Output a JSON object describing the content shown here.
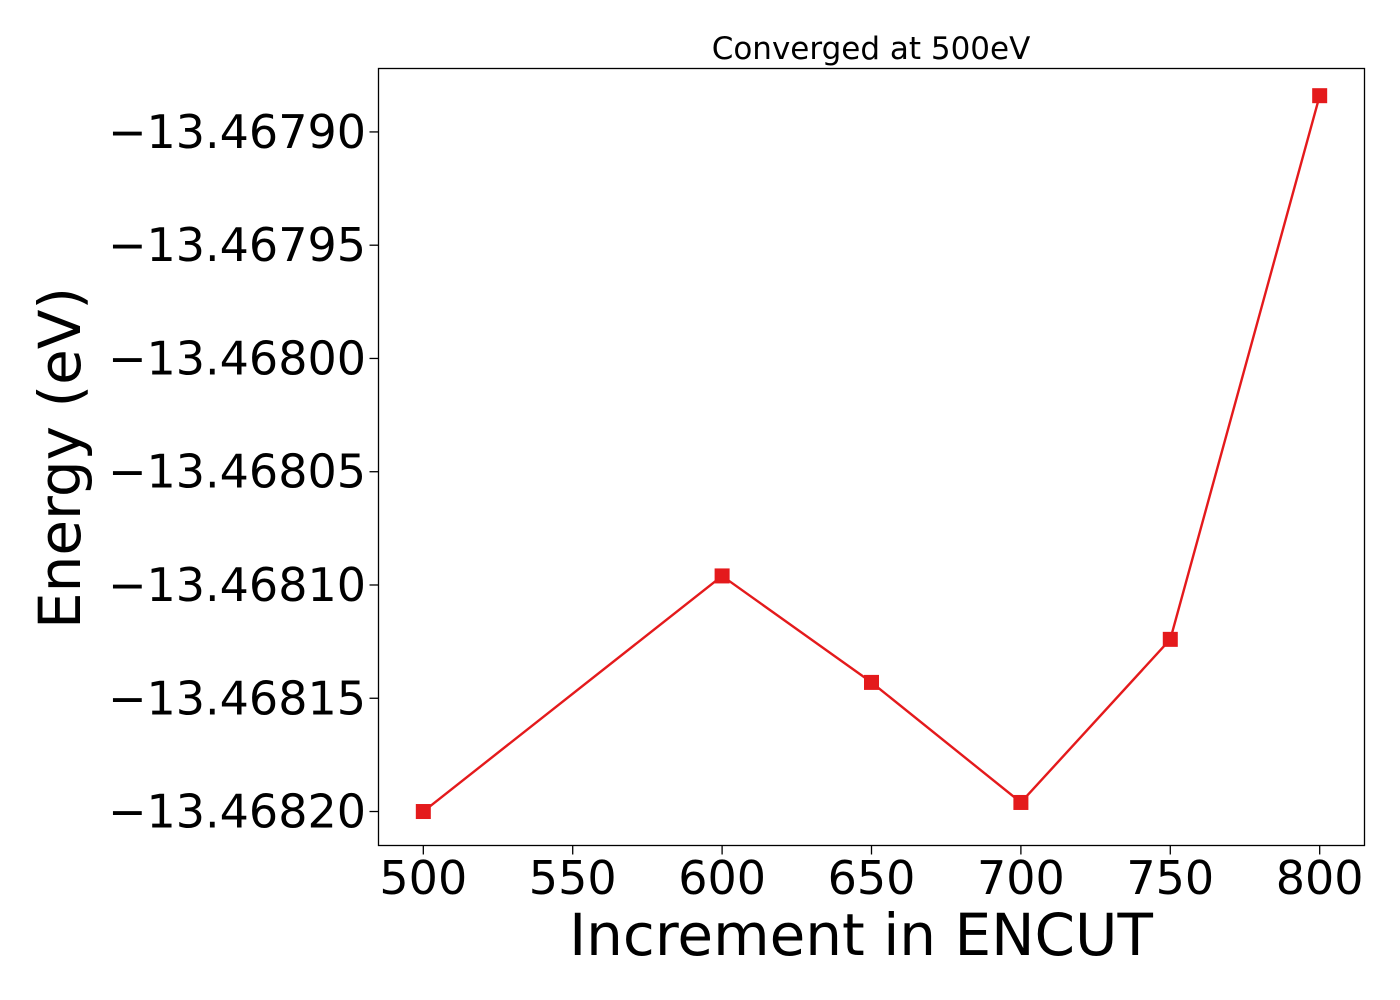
{
  "chart_data": {
    "type": "line",
    "title": "Converged at 500eV",
    "xlabel": "Increment in ENCUT",
    "ylabel": "Energy (eV)",
    "x": [
      500,
      600,
      650,
      700,
      750,
      800
    ],
    "series": [
      {
        "values": [
          -13.4682,
          -13.468096,
          -13.468143,
          -13.468196,
          -13.468124,
          -13.467884
        ],
        "color": "#e41a1c",
        "marker": "square"
      }
    ],
    "xticks": [
      500,
      550,
      600,
      650,
      700,
      750,
      800
    ],
    "xtick_labels": [
      "500",
      "550",
      "600",
      "650",
      "700",
      "750",
      "800"
    ],
    "yticks": [
      -13.4679,
      -13.46795,
      -13.468,
      -13.46805,
      -13.4681,
      -13.46815,
      -13.4682
    ],
    "ytick_labels": [
      "−13.46790",
      "−13.46795",
      "−13.46800",
      "−13.46805",
      "−13.46810",
      "−13.46815",
      "−13.46820"
    ],
    "xlim": [
      485,
      815
    ],
    "ylim": [
      -13.468215,
      -13.467872
    ],
    "grid": false
  }
}
